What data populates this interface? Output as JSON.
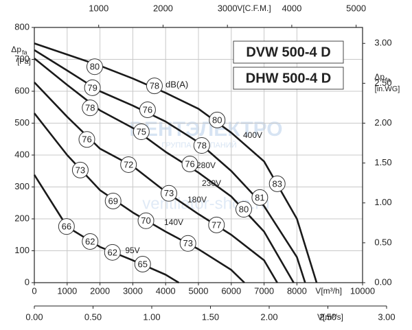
{
  "chart_data": {
    "type": "line",
    "models": [
      "DVW 500-4 D",
      "DHW 500-4 D"
    ],
    "annotation": "dB(A)",
    "watermark": [
      "ВЕНТЭЛЕКТРО",
      "ГРУППА КОМПАНИЙ",
      "ventilator-shop.ru"
    ],
    "x_label": "V[m³/h]",
    "xlim": [
      0,
      10000
    ],
    "xticks": [
      0,
      1000,
      2000,
      3000,
      4000,
      5000,
      6000,
      7000,
      8000,
      10000
    ],
    "y_label": {
      "main": "Δp",
      "sub": "fa",
      "unit": "[Pa]"
    },
    "ylim": [
      0,
      800
    ],
    "yticks": [
      0,
      100,
      200,
      300,
      400,
      500,
      600,
      700,
      800
    ],
    "y2_label": {
      "main": "Δp",
      "sub": "fa",
      "unit": "[in.WG]"
    },
    "y2lim": [
      0,
      3.2
    ],
    "y2ticks": [
      {
        "value": 0,
        "label": "0.00"
      },
      {
        "value": 0.5,
        "label": "0.50"
      },
      {
        "value": 1,
        "label": "1.00"
      },
      {
        "value": 1.5,
        "label": "1.50"
      },
      {
        "value": 2,
        "label": "2.00"
      },
      {
        "value": 2.5,
        "label": "2.50"
      },
      {
        "value": 3,
        "label": "3.00"
      }
    ],
    "x2_label": "V[C.F.M.]",
    "x2lim": [
      0,
      5100
    ],
    "x2ticks": [
      1000,
      2000,
      3000,
      4000,
      5000
    ],
    "x3_label": "V[m³/s]",
    "x3lim": [
      0,
      3
    ],
    "x3ticks": [
      {
        "value": 0,
        "label": "0.00"
      },
      {
        "value": 0.5,
        "label": "0.50"
      },
      {
        "value": 1,
        "label": "1.00"
      },
      {
        "value": 1.5,
        "label": "1.50"
      },
      {
        "value": 2,
        "label": "2.00"
      },
      {
        "value": 2.5,
        "label": "2.50"
      },
      {
        "value": 3,
        "label": "3.00"
      }
    ],
    "grid": true,
    "series": [
      {
        "name": "400V",
        "color": "#1a1a1a",
        "x": [
          0,
          1000,
          2000,
          3000,
          4000,
          5000,
          6000,
          7000,
          8000,
          8600
        ],
        "values": [
          750,
          715,
          680,
          640,
          595,
          545,
          470,
          380,
          200,
          0
        ]
      },
      {
        "name": "280V",
        "color": "#1a1a1a",
        "x": [
          0,
          1000,
          2000,
          3000,
          4000,
          5000,
          6000,
          7000,
          8000,
          8250
        ],
        "values": [
          729,
          665,
          600,
          555,
          505,
          440,
          350,
          240,
          80,
          0
        ]
      },
      {
        "name": "230V",
        "color": "#1a1a1a",
        "x": [
          0,
          1000,
          2000,
          3000,
          4000,
          5000,
          6000,
          7000,
          7900
        ],
        "values": [
          703,
          620,
          540,
          485,
          410,
          345,
          270,
          160,
          0
        ]
      },
      {
        "name": "180V",
        "color": "#1a1a1a",
        "x": [
          0,
          1000,
          2000,
          3000,
          4000,
          5000,
          6000,
          7000,
          7400
        ],
        "values": [
          628,
          520,
          420,
          365,
          285,
          215,
          150,
          70,
          0
        ]
      },
      {
        "name": "140V",
        "color": "#1a1a1a",
        "x": [
          0,
          1000,
          2000,
          3000,
          4000,
          5000,
          6000,
          6400
        ],
        "values": [
          531,
          400,
          290,
          220,
          160,
          105,
          40,
          0
        ]
      },
      {
        "name": "95V",
        "color": "#1a1a1a",
        "x": [
          0,
          1000,
          2000,
          3000,
          4000,
          4400
        ],
        "values": [
          338,
          175,
          112,
          70,
          25,
          0
        ]
      }
    ],
    "sound_points": [
      {
        "x": 1840,
        "y": 677,
        "label": 80
      },
      {
        "x": 3660,
        "y": 617,
        "label": 78
      },
      {
        "x": 5570,
        "y": 510,
        "label": 80
      },
      {
        "x": 7400,
        "y": 310,
        "label": 83
      },
      {
        "x": 1770,
        "y": 611,
        "label": 79
      },
      {
        "x": 3450,
        "y": 542,
        "label": 76
      },
      {
        "x": 5100,
        "y": 430,
        "label": 78
      },
      {
        "x": 6870,
        "y": 267,
        "label": 81
      },
      {
        "x": 1700,
        "y": 548,
        "label": 78
      },
      {
        "x": 3260,
        "y": 473,
        "label": 75
      },
      {
        "x": 4740,
        "y": 372,
        "label": 76
      },
      {
        "x": 6380,
        "y": 230,
        "label": 80
      },
      {
        "x": 1600,
        "y": 449,
        "label": 76
      },
      {
        "x": 2870,
        "y": 370,
        "label": 72
      },
      {
        "x": 4100,
        "y": 280,
        "label": 73
      },
      {
        "x": 5550,
        "y": 181,
        "label": 77
      },
      {
        "x": 1400,
        "y": 353,
        "label": 73
      },
      {
        "x": 2400,
        "y": 256,
        "label": 69
      },
      {
        "x": 3400,
        "y": 194,
        "label": 70
      },
      {
        "x": 4680,
        "y": 123,
        "label": 73
      },
      {
        "x": 980,
        "y": 176,
        "label": 66
      },
      {
        "x": 1700,
        "y": 129,
        "label": 62
      },
      {
        "x": 2380,
        "y": 95,
        "label": 62
      },
      {
        "x": 3300,
        "y": 58,
        "label": 65
      }
    ]
  }
}
